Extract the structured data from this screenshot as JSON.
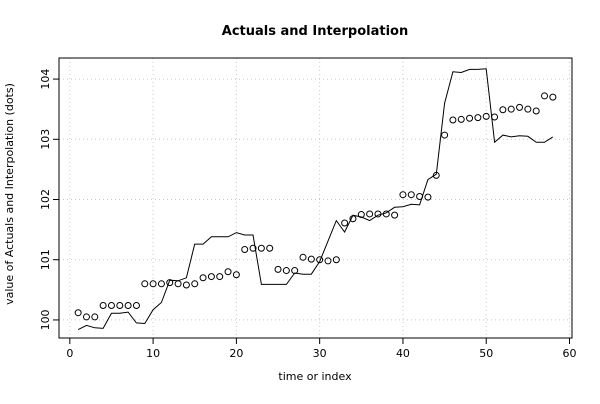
{
  "chart_data": {
    "type": "line",
    "title": "Actuals and Interpolation",
    "xlabel": "time or index",
    "ylabel": "value of Actuals and Interpolation (dots)",
    "xlim": [
      -1.3,
      60.3
    ],
    "ylim": [
      99.7,
      104.35
    ],
    "x_ticks": [
      0,
      10,
      20,
      30,
      40,
      50,
      60
    ],
    "y_ticks": [
      100,
      101,
      102,
      103,
      104
    ],
    "grid": "dotted",
    "series": [
      {
        "style": "line",
        "x": [
          1,
          2,
          3,
          4,
          5,
          6,
          7,
          8,
          9,
          10,
          11,
          12,
          13,
          14,
          15,
          16,
          17,
          18,
          19,
          20,
          21,
          22,
          23,
          24,
          25,
          26,
          27,
          28,
          29,
          30,
          31,
          32,
          33,
          34,
          35,
          36,
          37,
          38,
          39,
          40,
          41,
          42,
          43,
          44,
          45,
          46,
          47,
          48,
          49,
          50,
          51,
          52,
          53,
          54,
          55,
          56,
          57,
          58
        ],
        "values": [
          99.84,
          99.91,
          99.87,
          99.86,
          100.11,
          100.11,
          100.13,
          99.95,
          99.94,
          100.17,
          100.29,
          100.66,
          100.65,
          100.7,
          101.26,
          101.26,
          101.38,
          101.38,
          101.38,
          101.45,
          101.41,
          101.41,
          100.59,
          100.59,
          100.59,
          100.59,
          100.78,
          100.76,
          100.76,
          100.97,
          101.31,
          101.65,
          101.46,
          101.74,
          101.71,
          101.65,
          101.74,
          101.78,
          101.87,
          101.88,
          101.92,
          101.91,
          102.33,
          102.42,
          103.6,
          104.12,
          104.11,
          104.16,
          104.16,
          104.17,
          102.95,
          103.07,
          103.04,
          103.06,
          103.05,
          102.95,
          102.95,
          103.04
        ]
      },
      {
        "style": "points",
        "x": [
          1,
          2,
          3,
          4,
          5,
          6,
          7,
          8,
          9,
          10,
          11,
          12,
          13,
          14,
          15,
          16,
          17,
          18,
          19,
          20,
          21,
          22,
          23,
          24,
          25,
          26,
          27,
          28,
          29,
          30,
          31,
          32,
          33,
          34,
          35,
          36,
          37,
          38,
          39,
          40,
          41,
          42,
          43,
          44,
          45,
          46,
          47,
          48,
          49,
          50,
          51,
          52,
          53,
          54,
          55,
          56,
          57,
          58
        ],
        "values": [
          100.12,
          100.05,
          100.05,
          100.24,
          100.24,
          100.24,
          100.24,
          100.24,
          100.6,
          100.6,
          100.6,
          100.62,
          100.6,
          100.58,
          100.6,
          100.7,
          100.72,
          100.72,
          100.8,
          100.75,
          101.17,
          101.19,
          101.19,
          101.19,
          100.84,
          100.82,
          100.82,
          101.04,
          101.01,
          101.0,
          100.98,
          101.0,
          101.61,
          101.68,
          101.75,
          101.76,
          101.76,
          101.76,
          101.74,
          102.08,
          102.08,
          102.05,
          102.04,
          102.4,
          103.07,
          103.32,
          103.33,
          103.35,
          103.36,
          103.38,
          103.37,
          103.49,
          103.5,
          103.53,
          103.5,
          103.47,
          103.72,
          103.7
        ]
      }
    ]
  }
}
